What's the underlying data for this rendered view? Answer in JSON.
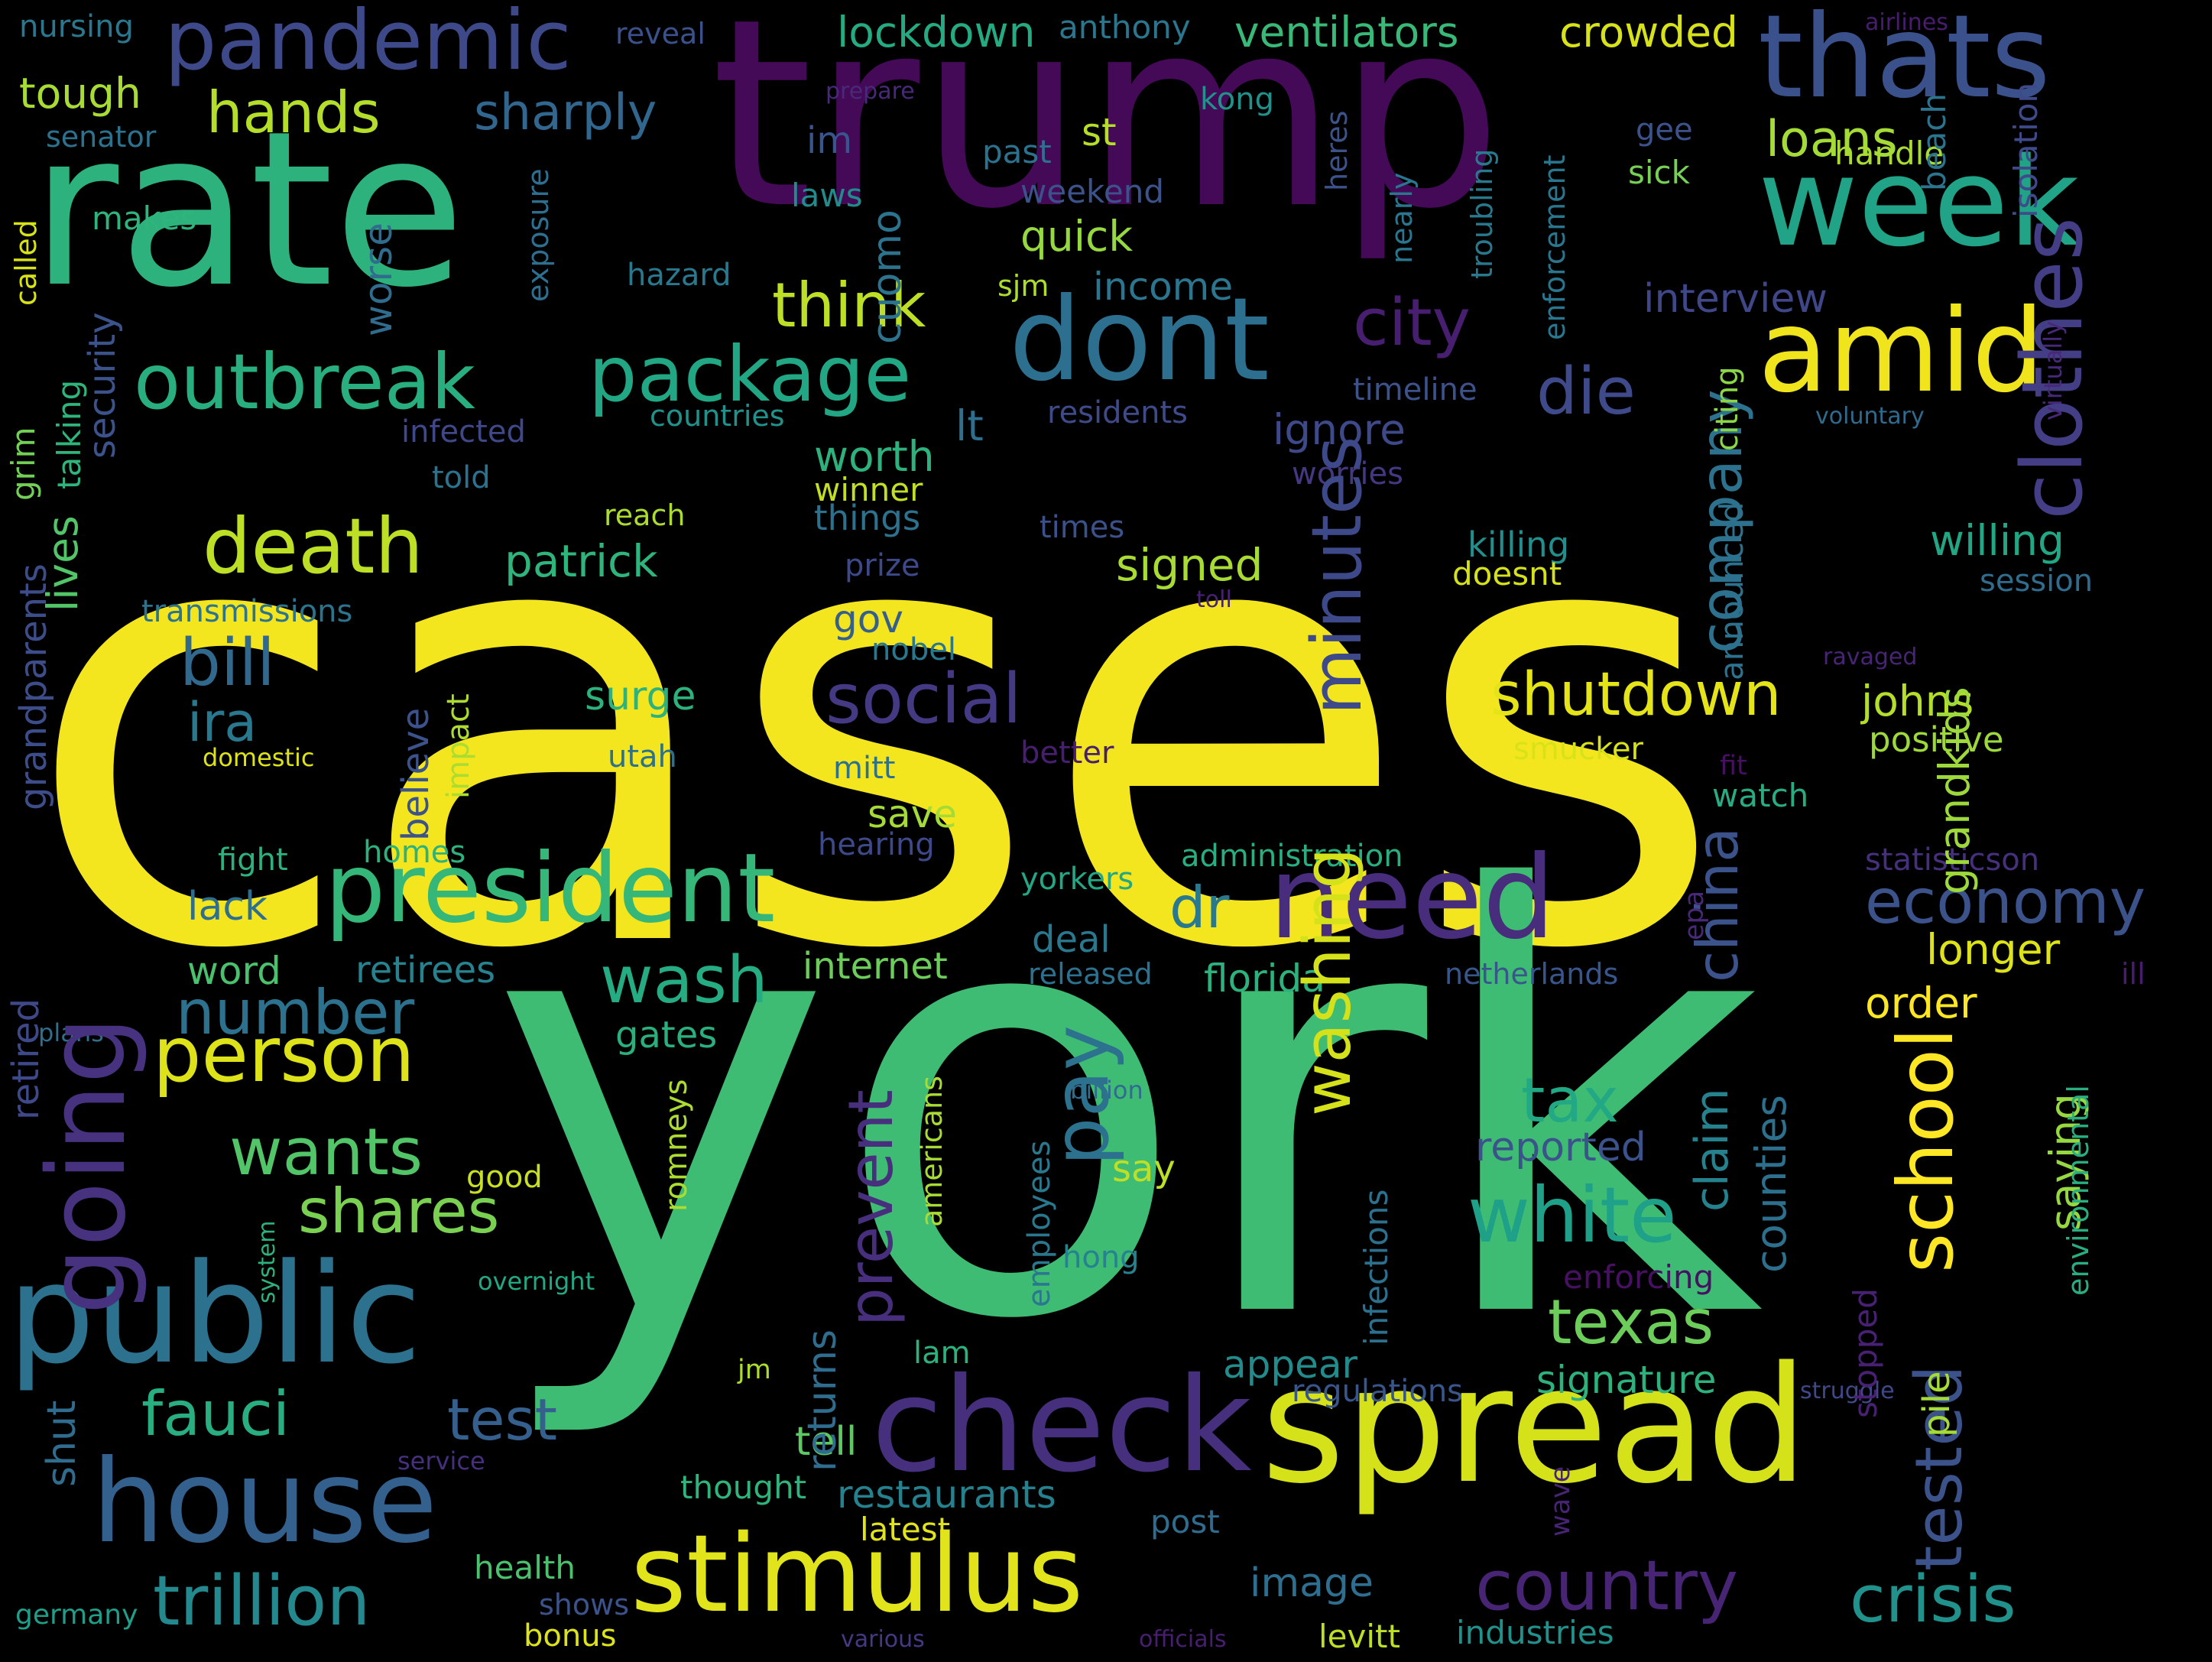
{
  "words": [
    {
      "text": "cases",
      "color": "#f4e61e",
      "vertical": false
    },
    {
      "text": "york",
      "color": "#3fbc73",
      "vertical": false
    },
    {
      "text": "trump",
      "color": "#440a57",
      "vertical": false
    },
    {
      "text": "rate",
      "color": "#2db27d",
      "vertical": false
    },
    {
      "text": "spread",
      "color": "#d5e21a",
      "vertical": false
    },
    {
      "text": "public",
      "color": "#2c718e",
      "vertical": false
    },
    {
      "text": "check",
      "color": "#46307e",
      "vertical": false
    },
    {
      "text": "house",
      "color": "#34608d",
      "vertical": false
    },
    {
      "text": "stimulus",
      "color": "#e1e31b",
      "vertical": false
    },
    {
      "text": "thats",
      "color": "#3b518b",
      "vertical": false
    },
    {
      "text": "week",
      "color": "#20a386",
      "vertical": false
    },
    {
      "text": "dont",
      "color": "#2d6f8e",
      "vertical": false
    },
    {
      "text": "amid",
      "color": "#f0e51d",
      "vertical": false
    },
    {
      "text": "need",
      "color": "#472d7b",
      "vertical": false
    },
    {
      "text": "president",
      "color": "#35b779",
      "vertical": false
    },
    {
      "text": "pandemic",
      "color": "#3e4989",
      "vertical": false
    },
    {
      "text": "outbreak",
      "color": "#29af7f",
      "vertical": false
    },
    {
      "text": "package",
      "color": "#22a785",
      "vertical": false
    },
    {
      "text": "death",
      "color": "#bddf26",
      "vertical": false
    },
    {
      "text": "person",
      "color": "#dde318",
      "vertical": false
    },
    {
      "text": "white",
      "color": "#1fa088",
      "vertical": false
    },
    {
      "text": "trillion",
      "color": "#23898e",
      "vertical": false
    },
    {
      "text": "country",
      "color": "#482475",
      "vertical": false
    },
    {
      "text": "crisis",
      "color": "#21918c",
      "vertical": false
    },
    {
      "text": "social",
      "color": "#443983",
      "vertical": false
    },
    {
      "text": "shutdown",
      "color": "#e5e419",
      "vertical": false
    },
    {
      "text": "economy",
      "color": "#3b528b",
      "vertical": false
    },
    {
      "text": "texas",
      "color": "#6ccd5a",
      "vertical": false
    },
    {
      "text": "shares",
      "color": "#7ad151",
      "vertical": false
    },
    {
      "text": "wants",
      "color": "#52c569",
      "vertical": false
    },
    {
      "text": "number",
      "color": "#2c728e",
      "vertical": false
    },
    {
      "text": "wash",
      "color": "#25ac82",
      "vertical": false
    },
    {
      "text": "hands",
      "color": "#b5de2b",
      "vertical": false
    },
    {
      "text": "think",
      "color": "#bddf26",
      "vertical": false
    },
    {
      "text": "city",
      "color": "#481f70",
      "vertical": false
    },
    {
      "text": "die",
      "color": "#3e4a89",
      "vertical": false
    },
    {
      "text": "bill",
      "color": "#31688e",
      "vertical": false
    },
    {
      "text": "fauci",
      "color": "#28ae80",
      "vertical": false
    },
    {
      "text": "test",
      "color": "#355f8d",
      "vertical": false
    },
    {
      "text": "tax",
      "color": "#22a884",
      "vertical": false
    },
    {
      "text": "sharply",
      "color": "#31668e",
      "vertical": false
    },
    {
      "text": "dr",
      "color": "#2a788e",
      "vertical": false
    },
    {
      "text": "loans",
      "color": "#a5db36",
      "vertical": false
    },
    {
      "text": "lockdown",
      "color": "#25ab82",
      "vertical": false
    },
    {
      "text": "ventilators",
      "color": "#38b977",
      "vertical": false
    },
    {
      "text": "crowded",
      "color": "#d8e219",
      "vertical": false
    },
    {
      "text": "anthony",
      "color": "#2a768e",
      "vertical": false
    },
    {
      "text": "nursing",
      "color": "#2a778e",
      "vertical": false
    },
    {
      "text": "tough",
      "color": "#a8db34",
      "vertical": false
    },
    {
      "text": "senator",
      "color": "#2c728e",
      "vertical": false
    },
    {
      "text": "makes",
      "color": "#2fb47c",
      "vertical": false
    },
    {
      "text": "reveal",
      "color": "#3b518b",
      "vertical": false
    },
    {
      "text": "prepare",
      "color": "#482979",
      "vertical": false
    },
    {
      "text": "airlines",
      "color": "#481d6f",
      "vertical": false
    },
    {
      "text": "kong",
      "color": "#21918c",
      "vertical": false
    },
    {
      "text": "past",
      "color": "#2c728e",
      "vertical": false
    },
    {
      "text": "st",
      "color": "#b5de2b",
      "vertical": false
    },
    {
      "text": "im",
      "color": "#39558c",
      "vertical": false
    },
    {
      "text": "laws",
      "color": "#228c8d",
      "vertical": false
    },
    {
      "text": "weekend",
      "color": "#3b528b",
      "vertical": false
    },
    {
      "text": "quick",
      "color": "#95d840",
      "vertical": false
    },
    {
      "text": "sjm",
      "color": "#addc30",
      "vertical": false
    },
    {
      "text": "income",
      "color": "#2b758e",
      "vertical": false
    },
    {
      "text": "hazard",
      "color": "#29798e",
      "vertical": false
    },
    {
      "text": "gee",
      "color": "#3b528b",
      "vertical": false
    },
    {
      "text": "sick",
      "color": "#75d054",
      "vertical": false
    },
    {
      "text": "handle",
      "color": "#a8db34",
      "vertical": false
    },
    {
      "text": "interview",
      "color": "#3f4788",
      "vertical": false
    },
    {
      "text": "timeline",
      "color": "#3b528b",
      "vertical": false
    },
    {
      "text": "residents",
      "color": "#3e4a89",
      "vertical": false
    },
    {
      "text": "countries",
      "color": "#21918c",
      "vertical": false
    },
    {
      "text": "infected",
      "color": "#3f4889",
      "vertical": false
    },
    {
      "text": "told",
      "color": "#2c718e",
      "vertical": false
    },
    {
      "text": "worth",
      "color": "#2db27d",
      "vertical": false
    },
    {
      "text": "lt",
      "color": "#2e6e8e",
      "vertical": false
    },
    {
      "text": "ignore",
      "color": "#3e4989",
      "vertical": false
    },
    {
      "text": "worries",
      "color": "#453781",
      "vertical": false
    },
    {
      "text": "voluntary",
      "color": "#2f6b8e",
      "vertical": false
    },
    {
      "text": "winner",
      "color": "#c2df23",
      "vertical": false
    },
    {
      "text": "things",
      "color": "#2c728e",
      "vertical": false
    },
    {
      "text": "reach",
      "color": "#addc30",
      "vertical": false
    },
    {
      "text": "patrick",
      "color": "#2fb47c",
      "vertical": false
    },
    {
      "text": "signed",
      "color": "#a8db34",
      "vertical": false
    },
    {
      "text": "times",
      "color": "#3b518b",
      "vertical": false
    },
    {
      "text": "prize",
      "color": "#3e4989",
      "vertical": false
    },
    {
      "text": "killing",
      "color": "#218f8d",
      "vertical": false
    },
    {
      "text": "doesnt",
      "color": "#d5e21a",
      "vertical": false
    },
    {
      "text": "willing",
      "color": "#22a785",
      "vertical": false
    },
    {
      "text": "session",
      "color": "#2f6c8e",
      "vertical": false
    },
    {
      "text": "toll",
      "color": "#482173",
      "vertical": false
    },
    {
      "text": "transmissions",
      "color": "#2c738e",
      "vertical": false
    },
    {
      "text": "gov",
      "color": "#355f8d",
      "vertical": false
    },
    {
      "text": "nobel",
      "color": "#2a778e",
      "vertical": false
    },
    {
      "text": "ira",
      "color": "#2a788e",
      "vertical": false
    },
    {
      "text": "surge",
      "color": "#2db27d",
      "vertical": false
    },
    {
      "text": "johns",
      "color": "#b5de2b",
      "vertical": false
    },
    {
      "text": "positive",
      "color": "#9dd93b",
      "vertical": false
    },
    {
      "text": "ravaged",
      "color": "#482475",
      "vertical": false
    },
    {
      "text": "smucker",
      "color": "#d8e219",
      "vertical": false
    },
    {
      "text": "better",
      "color": "#481f70",
      "vertical": false
    },
    {
      "text": "fit",
      "color": "#471063",
      "vertical": false
    },
    {
      "text": "mitt",
      "color": "#2c718e",
      "vertical": false
    },
    {
      "text": "utah",
      "color": "#2c728e",
      "vertical": false
    },
    {
      "text": "domestic",
      "color": "#dde318",
      "vertical": false
    },
    {
      "text": "watch",
      "color": "#27ad81",
      "vertical": false
    },
    {
      "text": "save",
      "color": "#a5db36",
      "vertical": false
    },
    {
      "text": "hearing",
      "color": "#3e4989",
      "vertical": false
    },
    {
      "text": "fight",
      "color": "#2db27d",
      "vertical": false
    },
    {
      "text": "homes",
      "color": "#2db27d",
      "vertical": false
    },
    {
      "text": "administration",
      "color": "#29af7f",
      "vertical": false
    },
    {
      "text": "statisticson",
      "color": "#46307e",
      "vertical": false
    },
    {
      "text": "lack",
      "color": "#2e6e8e",
      "vertical": false
    },
    {
      "text": "yorkers",
      "color": "#22a884",
      "vertical": false
    },
    {
      "text": "deal",
      "color": "#2a788e",
      "vertical": false
    },
    {
      "text": "longer",
      "color": "#dde318",
      "vertical": false
    },
    {
      "text": "word",
      "color": "#4ac16d",
      "vertical": false
    },
    {
      "text": "retirees",
      "color": "#26828e",
      "vertical": false
    },
    {
      "text": "internet",
      "color": "#6ccd5a",
      "vertical": false
    },
    {
      "text": "released",
      "color": "#2c718e",
      "vertical": false
    },
    {
      "text": "florida",
      "color": "#2db27d",
      "vertical": false
    },
    {
      "text": "netherlands",
      "color": "#39568c",
      "vertical": false
    },
    {
      "text": "order",
      "color": "#fde725",
      "vertical": false
    },
    {
      "text": "ill",
      "color": "#481c6e",
      "vertical": false
    },
    {
      "text": "plans",
      "color": "#2e6e8e",
      "vertical": false
    },
    {
      "text": "gates",
      "color": "#2ab07f",
      "vertical": false
    },
    {
      "text": "billion",
      "color": "#2f6c8e",
      "vertical": false
    },
    {
      "text": "reported",
      "color": "#3b528b",
      "vertical": false
    },
    {
      "text": "say",
      "color": "#bddf26",
      "vertical": false
    },
    {
      "text": "good",
      "color": "#c8e020",
      "vertical": false
    },
    {
      "text": "hong",
      "color": "#26828e",
      "vertical": false
    },
    {
      "text": "overnight",
      "color": "#22a884",
      "vertical": false
    },
    {
      "text": "enforcing",
      "color": "#471063",
      "vertical": false
    },
    {
      "text": "appear",
      "color": "#228c8d",
      "vertical": false
    },
    {
      "text": "signature",
      "color": "#2db27d",
      "vertical": false
    },
    {
      "text": "regulations",
      "color": "#39568c",
      "vertical": false
    },
    {
      "text": "struggle",
      "color": "#3f4889",
      "vertical": false
    },
    {
      "text": "lam",
      "color": "#2db27d",
      "vertical": false
    },
    {
      "text": "jm",
      "color": "#addc30",
      "vertical": false
    },
    {
      "text": "tell",
      "color": "#5ec962",
      "vertical": false
    },
    {
      "text": "thought",
      "color": "#2fb47c",
      "vertical": false
    },
    {
      "text": "restaurants",
      "color": "#26818e",
      "vertical": false
    },
    {
      "text": "service",
      "color": "#46307e",
      "vertical": false
    },
    {
      "text": "latest",
      "color": "#e1e31b",
      "vertical": false
    },
    {
      "text": "post",
      "color": "#2f6c8e",
      "vertical": false
    },
    {
      "text": "health",
      "color": "#4ac16d",
      "vertical": false
    },
    {
      "text": "shows",
      "color": "#3b528b",
      "vertical": false
    },
    {
      "text": "image",
      "color": "#2e6e8e",
      "vertical": false
    },
    {
      "text": "germany",
      "color": "#1f9e89",
      "vertical": false
    },
    {
      "text": "bonus",
      "color": "#dde318",
      "vertical": false
    },
    {
      "text": "various",
      "color": "#443983",
      "vertical": false
    },
    {
      "text": "officials",
      "color": "#481f70",
      "vertical": false
    },
    {
      "text": "levitt",
      "color": "#bddf26",
      "vertical": false
    },
    {
      "text": "industries",
      "color": "#21918c",
      "vertical": false
    },
    {
      "text": "going",
      "color": "#46327e",
      "vertical": true
    },
    {
      "text": "minutes",
      "color": "#3e4989",
      "vertical": true
    },
    {
      "text": "clothes",
      "color": "#433e85",
      "vertical": true
    },
    {
      "text": "company",
      "color": "#2c718e",
      "vertical": true
    },
    {
      "text": "china",
      "color": "#3b528b",
      "vertical": true
    },
    {
      "text": "washing",
      "color": "#d5e21a",
      "vertical": true
    },
    {
      "text": "pay",
      "color": "#2c728e",
      "vertical": true
    },
    {
      "text": "prevent",
      "color": "#472f7d",
      "vertical": true
    },
    {
      "text": "school",
      "color": "#fde725",
      "vertical": true
    },
    {
      "text": "tested",
      "color": "#3b528b",
      "vertical": true
    },
    {
      "text": "claim",
      "color": "#26818e",
      "vertical": true
    },
    {
      "text": "counties",
      "color": "#2d708e",
      "vertical": true
    },
    {
      "text": "grandkids",
      "color": "#9dd93b",
      "vertical": true
    },
    {
      "text": "grandparents",
      "color": "#3d4d8a",
      "vertical": true
    },
    {
      "text": "cuomo",
      "color": "#2c738e",
      "vertical": true
    },
    {
      "text": "worse",
      "color": "#2f6c8e",
      "vertical": true
    },
    {
      "text": "security",
      "color": "#3b528b",
      "vertical": true
    },
    {
      "text": "talking",
      "color": "#2fb47c",
      "vertical": true
    },
    {
      "text": "lives",
      "color": "#52c569",
      "vertical": true
    },
    {
      "text": "grim",
      "color": "#73d056",
      "vertical": true
    },
    {
      "text": "called",
      "color": "#d8e219",
      "vertical": true
    },
    {
      "text": "exposure",
      "color": "#2e6e8e",
      "vertical": true
    },
    {
      "text": "heres",
      "color": "#3b528b",
      "vertical": true
    },
    {
      "text": "nearly",
      "color": "#2a768e",
      "vertical": true
    },
    {
      "text": "troubling",
      "color": "#29798e",
      "vertical": true
    },
    {
      "text": "enforcement",
      "color": "#2a768e",
      "vertical": true
    },
    {
      "text": "citing",
      "color": "#8bd646",
      "vertical": true
    },
    {
      "text": "announced",
      "color": "#2c718e",
      "vertical": true
    },
    {
      "text": "beach",
      "color": "#2c738e",
      "vertical": true
    },
    {
      "text": "isolation",
      "color": "#3e4a89",
      "vertical": true
    },
    {
      "text": "virtually",
      "color": "#482979",
      "vertical": true
    },
    {
      "text": "believe",
      "color": "#3b528b",
      "vertical": true
    },
    {
      "text": "impact",
      "color": "#addc30",
      "vertical": true
    },
    {
      "text": "retired",
      "color": "#3e4989",
      "vertical": true
    },
    {
      "text": "shut",
      "color": "#2f6c8e",
      "vertical": true
    },
    {
      "text": "returns",
      "color": "#2f6c8e",
      "vertical": true
    },
    {
      "text": "employees",
      "color": "#2a788e",
      "vertical": true
    },
    {
      "text": "americans",
      "color": "#a8db34",
      "vertical": true
    },
    {
      "text": "romneys",
      "color": "#addc30",
      "vertical": true
    },
    {
      "text": "system",
      "color": "#2db27d",
      "vertical": true
    },
    {
      "text": "infections",
      "color": "#2d708e",
      "vertical": true
    },
    {
      "text": "wave",
      "color": "#482475",
      "vertical": true
    },
    {
      "text": "stopped",
      "color": "#482173",
      "vertical": true
    },
    {
      "text": "pile",
      "color": "#a5db36",
      "vertical": true
    },
    {
      "text": "saying",
      "color": "#95d840",
      "vertical": true
    },
    {
      "text": "environmental",
      "color": "#29af7f",
      "vertical": true
    },
    {
      "text": "epa",
      "color": "#482979",
      "vertical": true
    }
  ]
}
